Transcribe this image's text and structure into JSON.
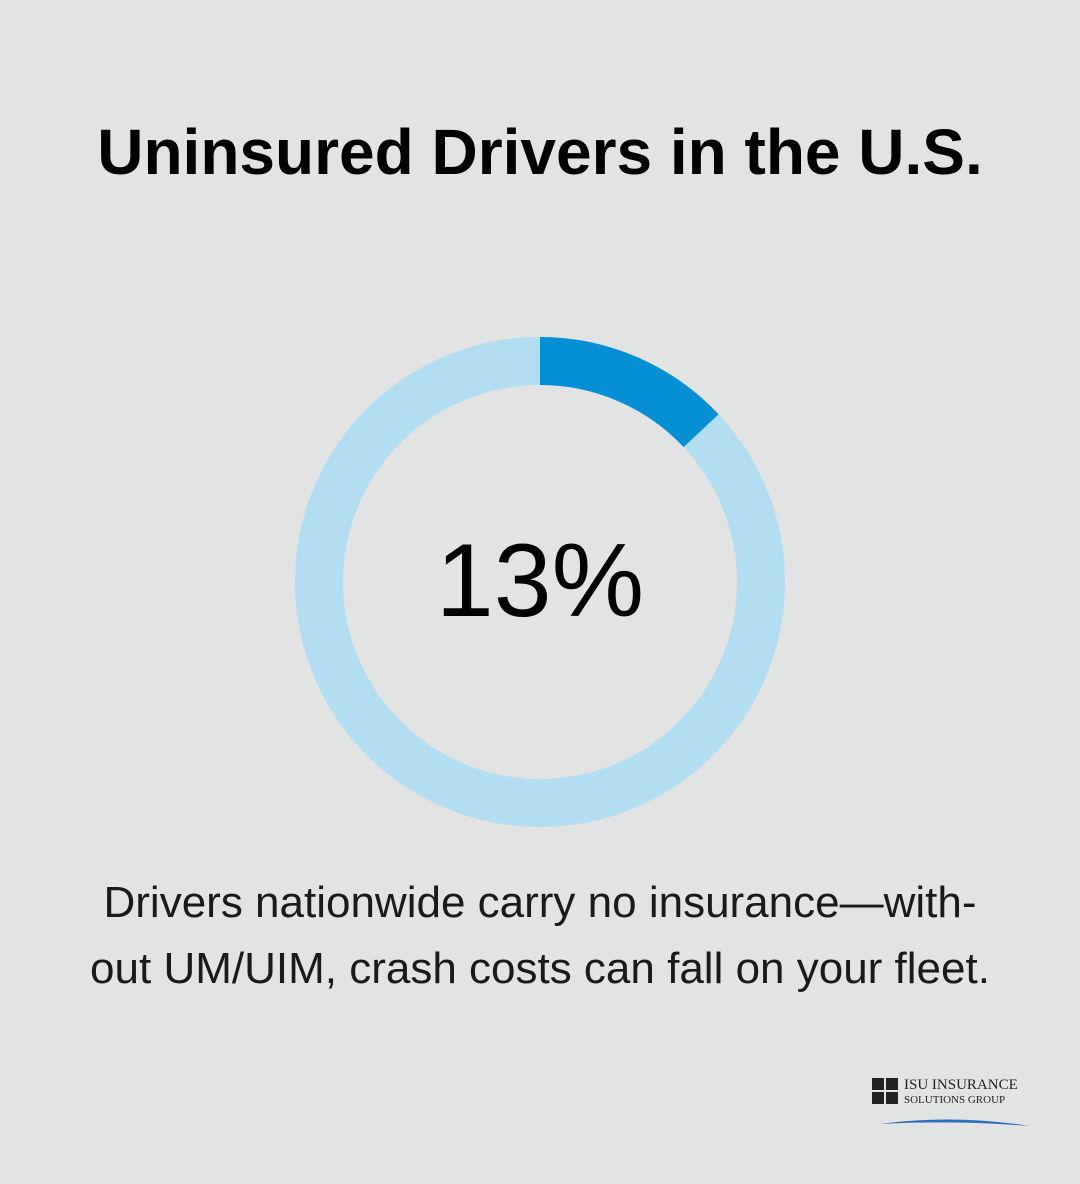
{
  "chart_data": {
    "type": "donut",
    "title": "Uninsured Drivers in the U.S.",
    "values": [
      13
    ],
    "value_labels": [
      "13%"
    ],
    "ylim": [
      0,
      100
    ],
    "color": "#0590d6",
    "track_color": "#b3ddf1",
    "caption_lines": [
      "Drivers nationwide carry no insurance—with-",
      "out UM/UIM, crash costs can fall on your fleet."
    ]
  },
  "logo": {
    "lines": [
      "ISU INSURANCE",
      "SOLUTIONS GROUP"
    ]
  }
}
